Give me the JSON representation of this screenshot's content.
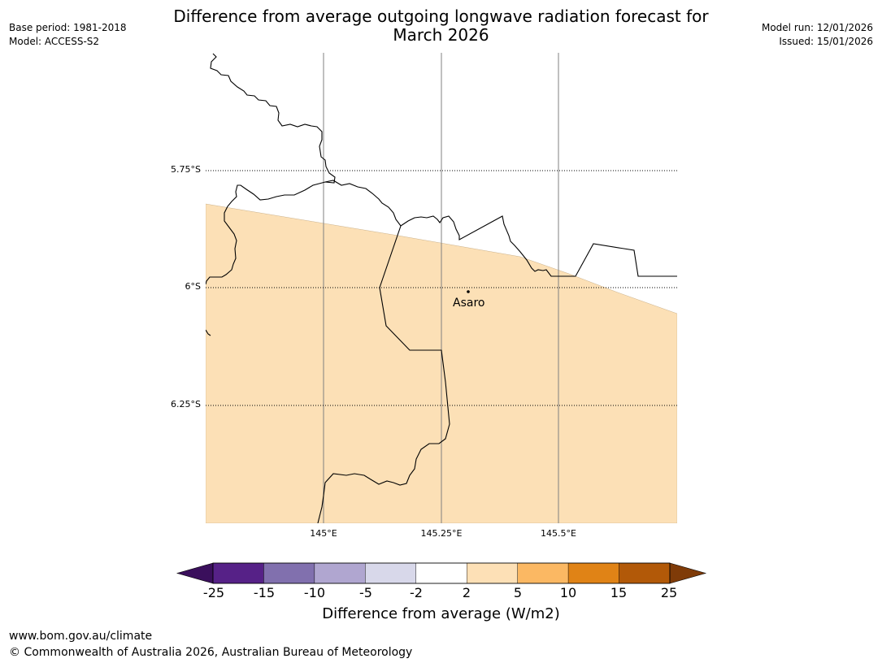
{
  "title": {
    "line1": "Difference from average outgoing longwave radiation forecast for",
    "line2": "March 2026"
  },
  "meta_left": {
    "base_period": "Base period: 1981-2018",
    "model": "Model: ACCESS-S2"
  },
  "meta_right": {
    "model_run": "Model run: 12/01/2026",
    "issued": "Issued: 15/01/2026"
  },
  "map": {
    "lat_labels": [
      "5.75°S",
      "6°S",
      "6.25°S"
    ],
    "lon_labels": [
      "145°E",
      "145.25°E",
      "145.5°E"
    ],
    "place_name": "Asaro",
    "forecast_fill_color": "#fce0b6",
    "grid_color": "#808080",
    "coast_color": "#000000"
  },
  "colorbar": {
    "ticks": [
      "-25",
      "-15",
      "-10",
      "-5",
      "-2",
      "2",
      "5",
      "10",
      "15",
      "25"
    ],
    "colors": [
      "#3a0f5c",
      "#562187",
      "#8170ae",
      "#b0a6d0",
      "#d8d8ea",
      "#ffffff",
      "#fde0b6",
      "#fbb863",
      "#e08316",
      "#b25908",
      "#7f3b08"
    ],
    "label": "Difference from average (W/m2)"
  },
  "footer": {
    "url": "www.bom.gov.au/climate",
    "copyright": "© Commonwealth of Australia 2026, Australian Bureau of Meteorology"
  }
}
